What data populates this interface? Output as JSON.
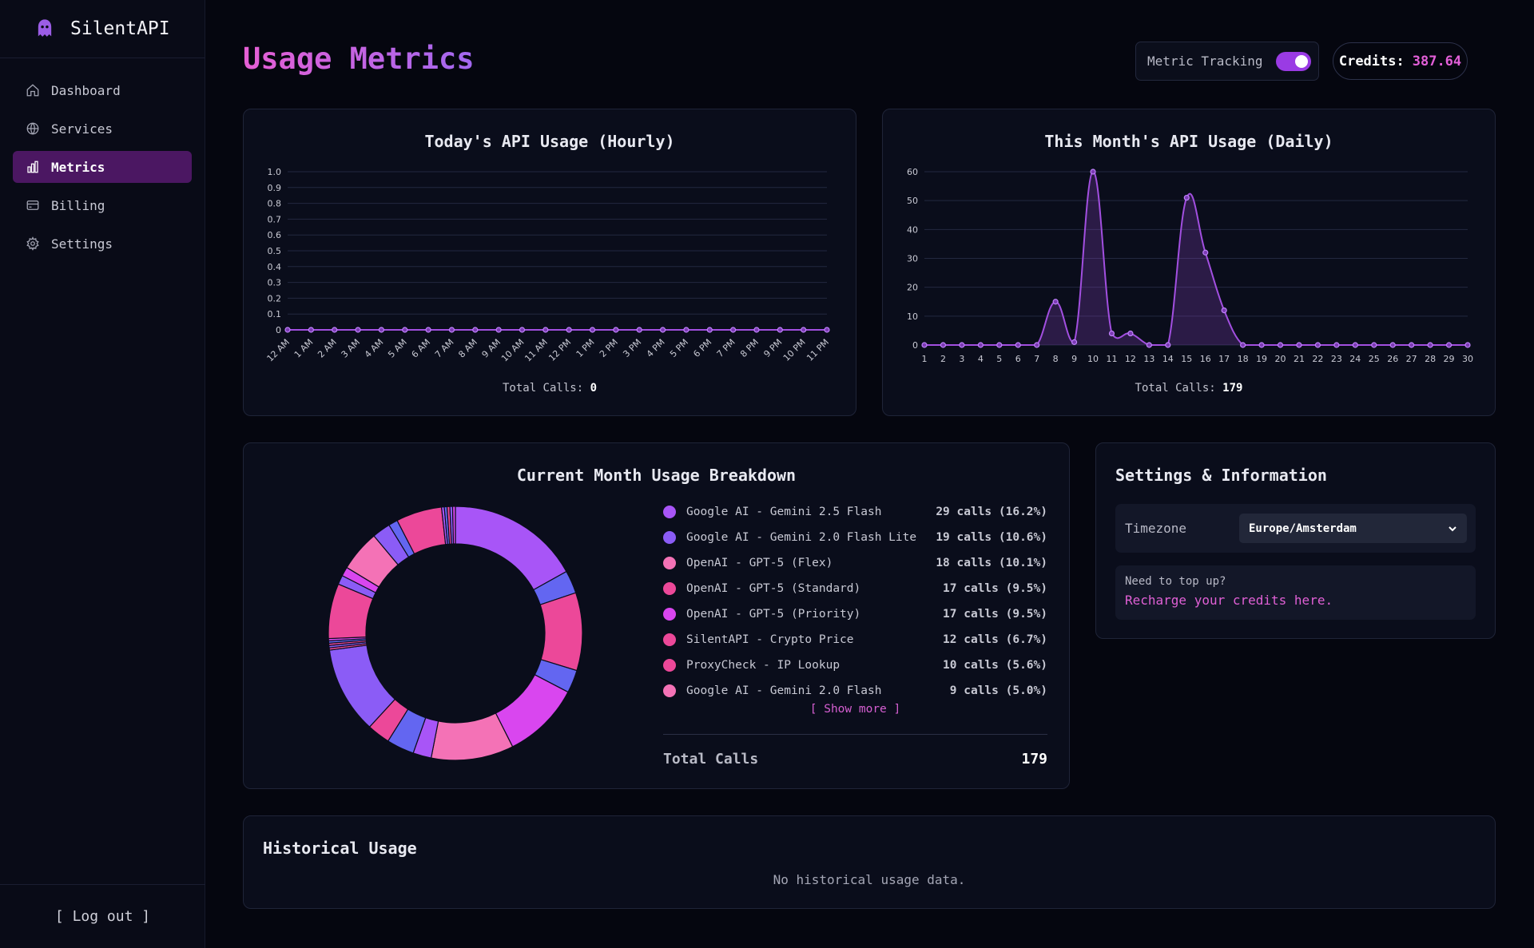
{
  "app": {
    "name": "SilentAPI"
  },
  "sidebar": {
    "items": [
      {
        "label": "Dashboard",
        "icon": "home-icon"
      },
      {
        "label": "Services",
        "icon": "globe-icon"
      },
      {
        "label": "Metrics",
        "icon": "bar-chart-icon",
        "active": true
      },
      {
        "label": "Billing",
        "icon": "credit-card-icon"
      },
      {
        "label": "Settings",
        "icon": "gear-icon"
      }
    ],
    "logout_label": "[ Log out ]"
  },
  "header": {
    "title": "Usage Metrics",
    "tracking_label": "Metric Tracking",
    "tracking_enabled": true,
    "credits_label": "Credits:",
    "credits_value": "387.64"
  },
  "colors": {
    "accent": "#9a3be4",
    "line": "#a24fe0",
    "pink": "#e060d5"
  },
  "hourly": {
    "title": "Today's API Usage (Hourly)",
    "total_label": "Total Calls:",
    "total_value": "0",
    "chart_data": {
      "type": "line",
      "x": [
        "12 AM",
        "1 AM",
        "2 AM",
        "3 AM",
        "4 AM",
        "5 AM",
        "6 AM",
        "7 AM",
        "8 AM",
        "9 AM",
        "10 AM",
        "11 AM",
        "12 PM",
        "1 PM",
        "2 PM",
        "3 PM",
        "4 PM",
        "5 PM",
        "6 PM",
        "7 PM",
        "8 PM",
        "9 PM",
        "10 PM",
        "11 PM"
      ],
      "values": [
        0,
        0,
        0,
        0,
        0,
        0,
        0,
        0,
        0,
        0,
        0,
        0,
        0,
        0,
        0,
        0,
        0,
        0,
        0,
        0,
        0,
        0,
        0,
        0
      ],
      "ylim": [
        0,
        1.0
      ],
      "yticks": [
        "0",
        "0.1",
        "0.2",
        "0.3",
        "0.4",
        "0.5",
        "0.6",
        "0.7",
        "0.8",
        "0.9",
        "1.0"
      ],
      "grid": true
    }
  },
  "daily": {
    "title": "This Month's API Usage (Daily)",
    "total_label": "Total Calls:",
    "total_value": "179",
    "chart_data": {
      "type": "area",
      "x": [
        "1",
        "2",
        "3",
        "4",
        "5",
        "6",
        "7",
        "8",
        "9",
        "10",
        "11",
        "12",
        "13",
        "14",
        "15",
        "16",
        "17",
        "18",
        "19",
        "20",
        "21",
        "22",
        "23",
        "24",
        "25",
        "26",
        "27",
        "28",
        "29",
        "30"
      ],
      "values": [
        0,
        0,
        0,
        0,
        0,
        0,
        0,
        15,
        1,
        60,
        4,
        4,
        0,
        0,
        51,
        32,
        12,
        0,
        0,
        0,
        0,
        0,
        0,
        0,
        0,
        0,
        0,
        0,
        0,
        0
      ],
      "ylim": [
        0,
        60
      ],
      "yticks": [
        "0",
        "10",
        "20",
        "30",
        "40",
        "50",
        "60"
      ],
      "grid": true
    }
  },
  "breakdown": {
    "title": "Current Month Usage Breakdown",
    "items": [
      {
        "label": "Google AI - Gemini 2.5 Flash",
        "value": "29 calls (16.2%)",
        "color": "#a855f7"
      },
      {
        "label": "Google AI - Gemini 2.0 Flash Lite",
        "value": "19 calls (10.6%)",
        "color": "#8b5cf6"
      },
      {
        "label": "OpenAI - GPT-5 (Flex)",
        "value": "18 calls (10.1%)",
        "color": "#f472b6"
      },
      {
        "label": "OpenAI - GPT-5 (Standard)",
        "value": "17 calls (9.5%)",
        "color": "#ec4899"
      },
      {
        "label": "OpenAI - GPT-5 (Priority)",
        "value": "17 calls (9.5%)",
        "color": "#d946ef"
      },
      {
        "label": "SilentAPI - Crypto Price",
        "value": "12 calls (6.7%)",
        "color": "#ec4899"
      },
      {
        "label": "ProxyCheck - IP Lookup",
        "value": "10 calls (5.6%)",
        "color": "#ec4899"
      },
      {
        "label": "Google AI - Gemini 2.0 Flash",
        "value": "9 calls (5.0%)",
        "color": "#f472b6"
      }
    ],
    "show_more_label": "[ Show more ]",
    "total_label": "Total Calls",
    "total_value": "179",
    "chart_data": {
      "type": "pie",
      "donut": true,
      "slices": [
        {
          "value": 29,
          "color": "#a855f7"
        },
        {
          "value": 5,
          "color": "#6366f1"
        },
        {
          "value": 17,
          "color": "#ec4899"
        },
        {
          "value": 5,
          "color": "#6366f1"
        },
        {
          "value": 17,
          "color": "#d946ef"
        },
        {
          "value": 18,
          "color": "#f472b6"
        },
        {
          "value": 4,
          "color": "#a855f7"
        },
        {
          "value": 6,
          "color": "#6366f1"
        },
        {
          "value": 5,
          "color": "#ec4899"
        },
        {
          "value": 19,
          "color": "#8b5cf6"
        },
        {
          "value": 0.5,
          "color": "#ec4899"
        },
        {
          "value": 0.5,
          "color": "#8b5cf6"
        },
        {
          "value": 0.5,
          "color": "#ec4899"
        },
        {
          "value": 0.5,
          "color": "#6366f1"
        },
        {
          "value": 0.5,
          "color": "#d946ef"
        },
        {
          "value": 12,
          "color": "#ec4899"
        },
        {
          "value": 2,
          "color": "#8b5cf6"
        },
        {
          "value": 2,
          "color": "#d946ef"
        },
        {
          "value": 9,
          "color": "#f472b6"
        },
        {
          "value": 4,
          "color": "#8b5cf6"
        },
        {
          "value": 2,
          "color": "#6366f1"
        },
        {
          "value": 10,
          "color": "#ec4899"
        },
        {
          "value": 0.6,
          "color": "#a855f7"
        },
        {
          "value": 0.6,
          "color": "#6366f1"
        },
        {
          "value": 0.6,
          "color": "#ec4899"
        },
        {
          "value": 0.6,
          "color": "#8b5cf6"
        },
        {
          "value": 0.6,
          "color": "#d946ef"
        }
      ]
    }
  },
  "settings": {
    "title": "Settings & Information",
    "timezone_label": "Timezone",
    "timezone_value": "Europe/Amsterdam",
    "topup_question": "Need to top up?",
    "topup_link": "Recharge your credits here."
  },
  "history": {
    "title": "Historical Usage",
    "empty_text": "No historical usage data."
  }
}
